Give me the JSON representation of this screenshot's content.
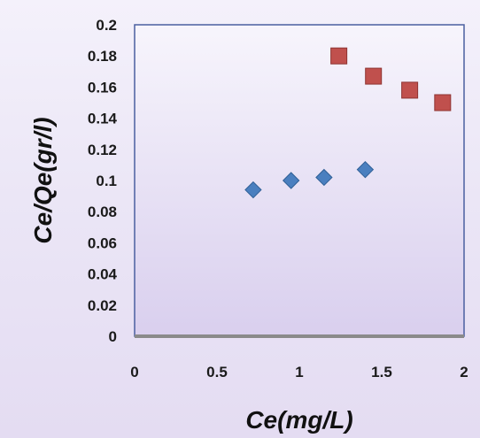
{
  "chart_data": {
    "type": "scatter",
    "xlabel": "Ce(mg/L)",
    "ylabel": "Ce/Qe(gr/l)",
    "xlim": [
      0,
      2
    ],
    "ylim": [
      0,
      0.2
    ],
    "x_ticks": [
      "0",
      "0.5",
      "1",
      "1.5",
      "2"
    ],
    "y_ticks": [
      "0",
      "0.02",
      "0.04",
      "0.06",
      "0.08",
      "0.1",
      "0.12",
      "0.14",
      "0.16",
      "0.18",
      "0.2"
    ],
    "grid": false,
    "legend": "none",
    "series": [
      {
        "marker": "diamond",
        "color": "#4a7fbf",
        "points": [
          {
            "x": 0.72,
            "y": 0.094
          },
          {
            "x": 0.95,
            "y": 0.1
          },
          {
            "x": 1.15,
            "y": 0.102
          },
          {
            "x": 1.4,
            "y": 0.107
          }
        ]
      },
      {
        "marker": "square",
        "color": "#c0504d",
        "points": [
          {
            "x": 1.24,
            "y": 0.18
          },
          {
            "x": 1.45,
            "y": 0.167
          },
          {
            "x": 1.67,
            "y": 0.158
          },
          {
            "x": 1.87,
            "y": 0.15
          }
        ]
      }
    ]
  }
}
